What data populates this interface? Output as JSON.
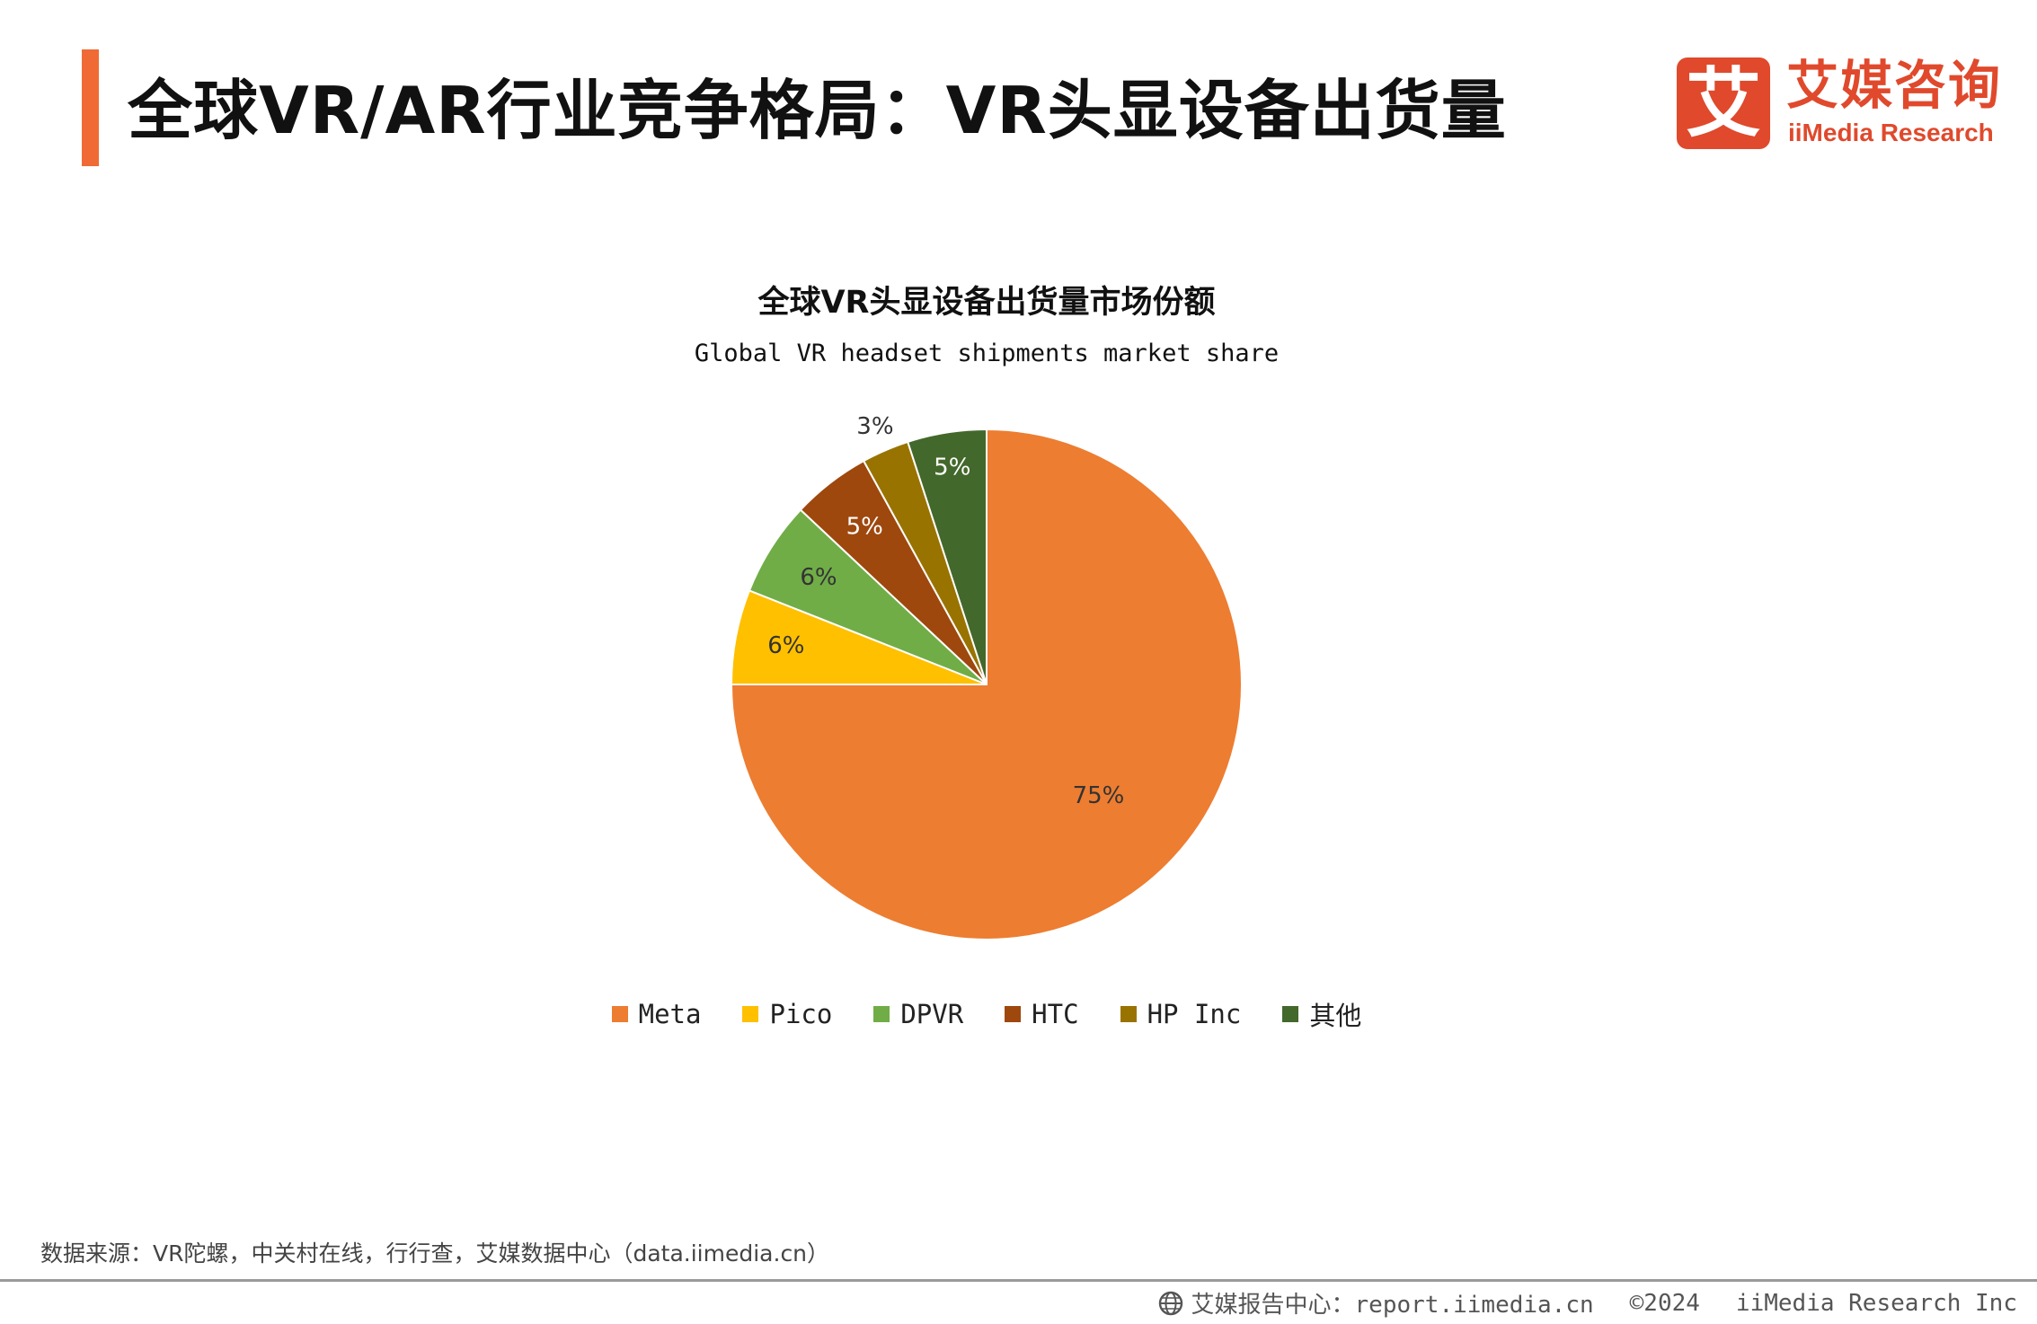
{
  "header": {
    "title": "全球VR/AR行业竞争格局：VR头显设备出货量",
    "accent_color": "#f06a35"
  },
  "logo": {
    "mark": "艾",
    "name_cn": "艾媒咨询",
    "name_en": "iiMedia Research",
    "color": "#e0492c"
  },
  "chart_data": {
    "type": "pie",
    "title": "全球VR头显设备出货量市场份额",
    "subtitle": "Global VR headset shipments market share",
    "unit": "%",
    "categories": [
      "Meta",
      "Pico",
      "DPVR",
      "HTC",
      "HP Inc",
      "其他"
    ],
    "values": [
      75,
      6,
      6,
      5,
      3,
      5
    ],
    "labels": [
      "75%",
      "6%",
      "6%",
      "5%",
      "3%",
      "5%"
    ],
    "colors": [
      "#ed7d31",
      "#ffc000",
      "#70ad47",
      "#9e480e",
      "#997300",
      "#43682b"
    ],
    "start_angle_deg": 0,
    "direction": "clockwise",
    "legend_position": "bottom"
  },
  "footer": {
    "source": "数据来源：VR陀螺，中关村在线，行行查，艾媒数据中心（data.iimedia.cn）",
    "report": "艾媒报告中心：report.iimedia.cn",
    "copyright": "©2024",
    "company": "iiMedia Research Inc"
  }
}
